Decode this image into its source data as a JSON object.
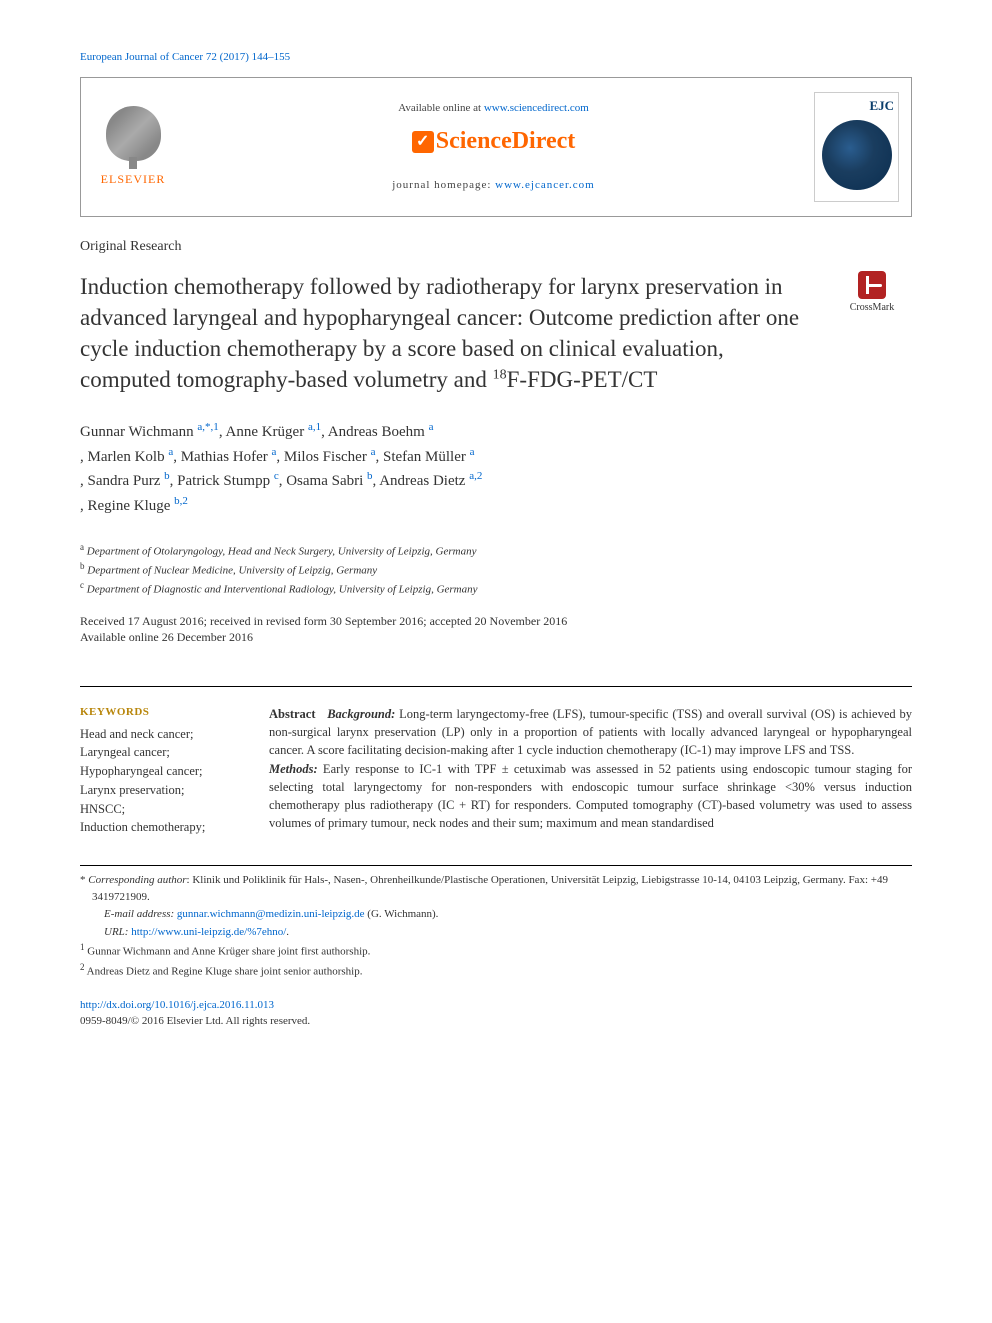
{
  "citation": "European Journal of Cancer 72 (2017) 144–155",
  "header": {
    "elsevier": "ELSEVIER",
    "available_prefix": "Available online at ",
    "available_link": "www.sciencedirect.com",
    "sd_logo": "ScienceDirect",
    "homepage_prefix": "journal homepage: ",
    "homepage_link": "www.ejcancer.com",
    "journal_abbr": "EJC"
  },
  "article_type": "Original Research",
  "title_prefix": "Induction chemotherapy followed by radiotherapy for larynx preservation in advanced laryngeal and hypopharyngeal cancer: Outcome prediction after one cycle induction chemotherapy by a score based on clinical evaluation, computed tomography-based volumetry and ",
  "title_sup": "18",
  "title_suffix": "F-FDG-PET/CT",
  "crossmark": "CrossMark",
  "authors": [
    {
      "name": "Gunnar Wichmann ",
      "sup": "a,*,1"
    },
    {
      "name": ", Anne Krüger ",
      "sup": "a,1"
    },
    {
      "name": ", Andreas Boehm ",
      "sup": "a"
    },
    {
      "name": ", Marlen Kolb ",
      "sup": "a"
    },
    {
      "name": ", Mathias Hofer ",
      "sup": "a"
    },
    {
      "name": ", Milos Fischer ",
      "sup": "a"
    },
    {
      "name": ", Stefan Müller ",
      "sup": "a"
    },
    {
      "name": ", Sandra Purz ",
      "sup": "b"
    },
    {
      "name": ", Patrick Stumpp ",
      "sup": "c"
    },
    {
      "name": ", Osama Sabri ",
      "sup": "b"
    },
    {
      "name": ", Andreas Dietz ",
      "sup": "a,2"
    },
    {
      "name": ", Regine Kluge ",
      "sup": "b,2"
    }
  ],
  "affiliations": [
    {
      "sup": "a",
      "text": " Department of Otolaryngology, Head and Neck Surgery, University of Leipzig, Germany"
    },
    {
      "sup": "b",
      "text": " Department of Nuclear Medicine, University of Leipzig, Germany"
    },
    {
      "sup": "c",
      "text": " Department of Diagnostic and Interventional Radiology, University of Leipzig, Germany"
    }
  ],
  "dates": {
    "line1": "Received 17 August 2016; received in revised form 30 September 2016; accepted 20 November 2016",
    "line2": "Available online 26 December 2016"
  },
  "keywords": {
    "heading": "KEYWORDS",
    "list": "Head and neck cancer;\nLaryngeal cancer;\nHypopharyngeal cancer;\nLarynx preservation;\nHNSCC;\nInduction chemotherapy;"
  },
  "abstract": {
    "label": "Abstract",
    "bg_label": "Background:",
    "bg_text": " Long-term laryngectomy-free (LFS), tumour-specific (TSS) and overall survival (OS) is achieved by non-surgical larynx preservation (LP) only in a proportion of patients with locally advanced laryngeal or hypopharyngeal cancer. A score facilitating decision-making after 1 cycle induction chemotherapy (IC-1) may improve LFS and TSS.",
    "me_label": "Methods:",
    "me_text": " Early response to IC-1 with TPF ± cetuximab was assessed in 52 patients using endoscopic tumour staging for selecting total laryngectomy for non-responders with endoscopic tumour surface shrinkage <30% versus induction chemotherapy plus radiotherapy (IC + RT) for responders. Computed tomography (CT)-based volumetry was used to assess volumes of primary tumour, neck nodes and their sum; maximum and mean standardised"
  },
  "footnotes": {
    "corr_label": "* ",
    "corr_italic": "Corresponding author",
    "corr_text": ": Klinik und Poliklinik für Hals-, Nasen-, Ohrenheilkunde/Plastische Operationen, Universität Leipzig, Liebigstrasse 10-14, 04103 Leipzig, Germany. Fax: +49 3419721909.",
    "email_label": "E-mail address: ",
    "email_link": "gunnar.wichmann@medizin.uni-leipzig.de",
    "email_suffix": " (G. Wichmann).",
    "url_label": "URL: ",
    "url_link": "http://www.uni-leipzig.de/%7ehno/",
    "url_suffix": ".",
    "fn1_sup": "1",
    "fn1_text": " Gunnar Wichmann and Anne Krüger share joint first authorship.",
    "fn2_sup": "2",
    "fn2_text": " Andreas Dietz and Regine Kluge share joint senior authorship."
  },
  "footer": {
    "doi": "http://dx.doi.org/10.1016/j.ejca.2016.11.013",
    "copyright": "0959-8049/© 2016 Elsevier Ltd. All rights reserved."
  },
  "colors": {
    "link": "#0066cc",
    "elsevier_orange": "#ff6600",
    "keywords_gold": "#b8860b",
    "crossmark_red": "#b22222",
    "ejc_blue": "#0a3d6b"
  }
}
